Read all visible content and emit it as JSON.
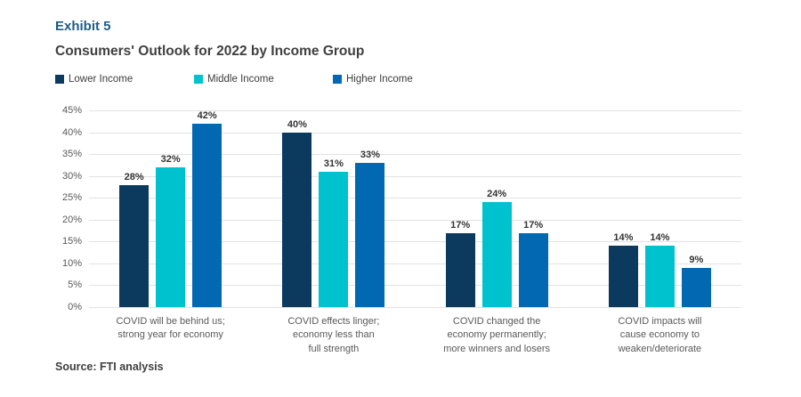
{
  "header": {
    "exhibit": "Exhibit 5",
    "title": "Consumers' Outlook for 2022 by Income Group"
  },
  "chart_data": {
    "type": "bar",
    "title": "Consumers' Outlook for 2022 by Income Group",
    "categories": [
      "COVID will be behind us;\nstrong year for economy",
      "COVID effects linger;\neconomy less than\nfull strength",
      "COVID changed the\neconomy permanently;\nmore winners and losers",
      "COVID impacts will\ncause economy to\nweaken/deteriorate"
    ],
    "series": [
      {
        "name": "Lower Income",
        "color": "#0B3A5E",
        "values": [
          28,
          40,
          17,
          14
        ]
      },
      {
        "name": "Middle Income",
        "color": "#00C2CE",
        "values": [
          32,
          31,
          24,
          14
        ]
      },
      {
        "name": "Higher Income",
        "color": "#0268B1",
        "values": [
          42,
          33,
          17,
          9
        ]
      }
    ],
    "value_suffix": "%",
    "ylim": [
      0,
      45
    ],
    "yticks": [
      45,
      40,
      35,
      30,
      25,
      20,
      15,
      10,
      5,
      0
    ],
    "ytick_labels": [
      "45%",
      "40%",
      "35%",
      "30%",
      "25%",
      "20%",
      "15%",
      "10%",
      "5%",
      "0%"
    ],
    "xlabel": "",
    "ylabel": "",
    "grid": true,
    "legend_position": "top"
  },
  "source": "Source: FTI analysis",
  "colors": {
    "exhibit_text": "#1E5C87",
    "title_text": "#404040",
    "axis_text": "#595959",
    "gridline": "#E2E2E2",
    "value_label": "#333333",
    "background": "#FFFFFF"
  }
}
